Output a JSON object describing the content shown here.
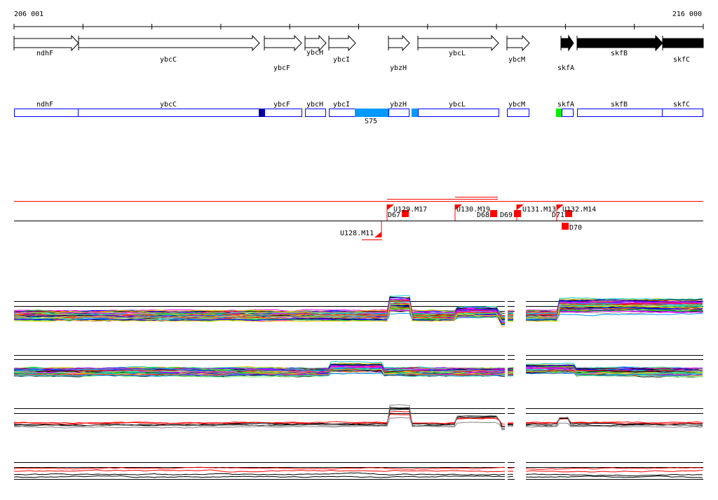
{
  "ruler": {
    "start_label": "206 001",
    "end_label": "216 000"
  },
  "genes": [
    {
      "name": "ndhF",
      "strand_filled": false
    },
    {
      "name": "ybcC",
      "strand_filled": false
    },
    {
      "name": "ybcF",
      "strand_filled": false
    },
    {
      "name": "ybcH",
      "strand_filled": false
    },
    {
      "name": "ybcI",
      "strand_filled": false
    },
    {
      "name": "ybzH",
      "strand_filled": false
    },
    {
      "name": "ybcL",
      "strand_filled": false
    },
    {
      "name": "ybcM",
      "strand_filled": false
    },
    {
      "name": "skfA",
      "strand_filled": true
    },
    {
      "name": "skfB",
      "strand_filled": true
    },
    {
      "name": "skfC",
      "strand_filled": true
    }
  ],
  "segment_label": "S75",
  "annotations": [
    "U128.M11",
    "U129.M17",
    "D67",
    "U130.M19",
    "D68",
    "D69",
    "U131.M13",
    "D71",
    "U132.M14",
    "D70"
  ],
  "colors": {
    "blue": "#0000ff",
    "darkblue": "#000099",
    "cyan": "#0099ff",
    "green": "#00ee00",
    "red": "#ff0000"
  }
}
